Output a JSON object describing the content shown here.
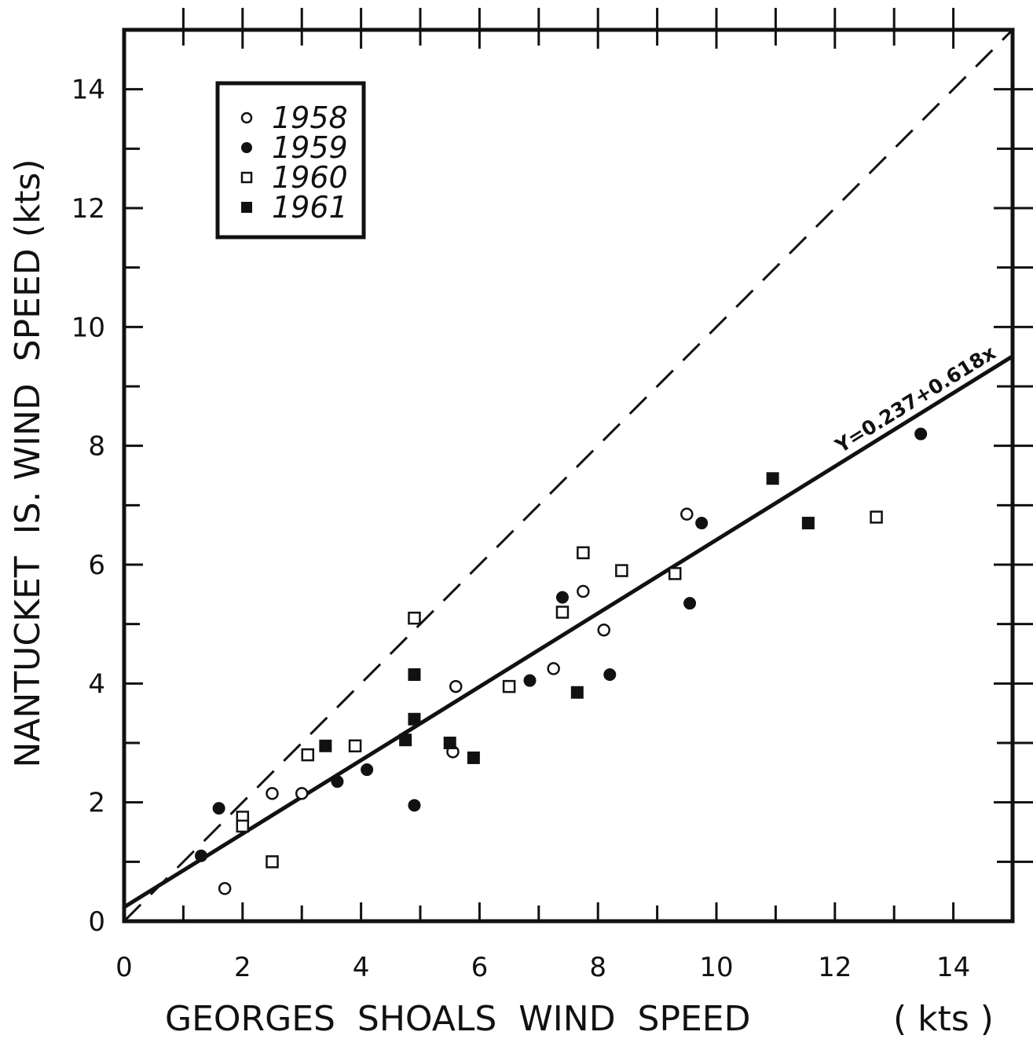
{
  "chart_data": {
    "type": "scatter",
    "title": "",
    "xlabel": "GEORGES  SHOALS  WIND  SPEED",
    "xlabel_unit": "( kts )",
    "ylabel": "NANTUCKET  IS. WIND  SPEED (kts)",
    "xlim": [
      0,
      15
    ],
    "ylim": [
      0,
      15
    ],
    "x_ticks": [
      "0",
      "2",
      "4",
      "6",
      "8",
      "10",
      "12",
      "14"
    ],
    "y_ticks": [
      "0",
      "2",
      "4",
      "6",
      "8",
      "10",
      "12",
      "14"
    ],
    "grid": false,
    "legend_position": "top-left",
    "series": [
      {
        "name": "1958",
        "marker": "open-circle",
        "points": [
          [
            1.7,
            0.55
          ],
          [
            2.5,
            2.15
          ],
          [
            3.0,
            2.15
          ],
          [
            5.55,
            2.85
          ],
          [
            5.6,
            3.95
          ],
          [
            7.25,
            4.25
          ],
          [
            7.75,
            5.55
          ],
          [
            8.1,
            4.9
          ],
          [
            9.5,
            6.85
          ]
        ]
      },
      {
        "name": "1959",
        "marker": "filled-circle",
        "points": [
          [
            1.3,
            1.1
          ],
          [
            1.6,
            1.9
          ],
          [
            3.6,
            2.35
          ],
          [
            4.1,
            2.55
          ],
          [
            4.9,
            1.95
          ],
          [
            6.85,
            4.05
          ],
          [
            7.4,
            5.45
          ],
          [
            8.2,
            4.15
          ],
          [
            9.55,
            5.35
          ],
          [
            9.75,
            6.7
          ],
          [
            13.45,
            8.2
          ]
        ]
      },
      {
        "name": "1960",
        "marker": "open-square",
        "points": [
          [
            2.0,
            1.75
          ],
          [
            2.0,
            1.6
          ],
          [
            2.5,
            1.0
          ],
          [
            3.1,
            2.8
          ],
          [
            3.9,
            2.95
          ],
          [
            4.9,
            5.1
          ],
          [
            6.5,
            3.95
          ],
          [
            7.4,
            5.2
          ],
          [
            7.75,
            6.2
          ],
          [
            8.4,
            5.9
          ],
          [
            9.3,
            5.85
          ],
          [
            12.7,
            6.8
          ]
        ]
      },
      {
        "name": "1961",
        "marker": "filled-square",
        "points": [
          [
            3.4,
            2.95
          ],
          [
            4.75,
            3.05
          ],
          [
            4.9,
            4.15
          ],
          [
            4.9,
            3.4
          ],
          [
            5.5,
            3.0
          ],
          [
            5.9,
            2.75
          ],
          [
            7.65,
            3.85
          ],
          [
            10.95,
            7.45
          ],
          [
            11.55,
            6.7
          ]
        ]
      }
    ],
    "regression": {
      "label": "Y=0.237+0.618x",
      "intercept": 0.237,
      "slope": 0.618
    },
    "reference_line": {
      "style": "dashed",
      "equation": "y = x"
    }
  }
}
